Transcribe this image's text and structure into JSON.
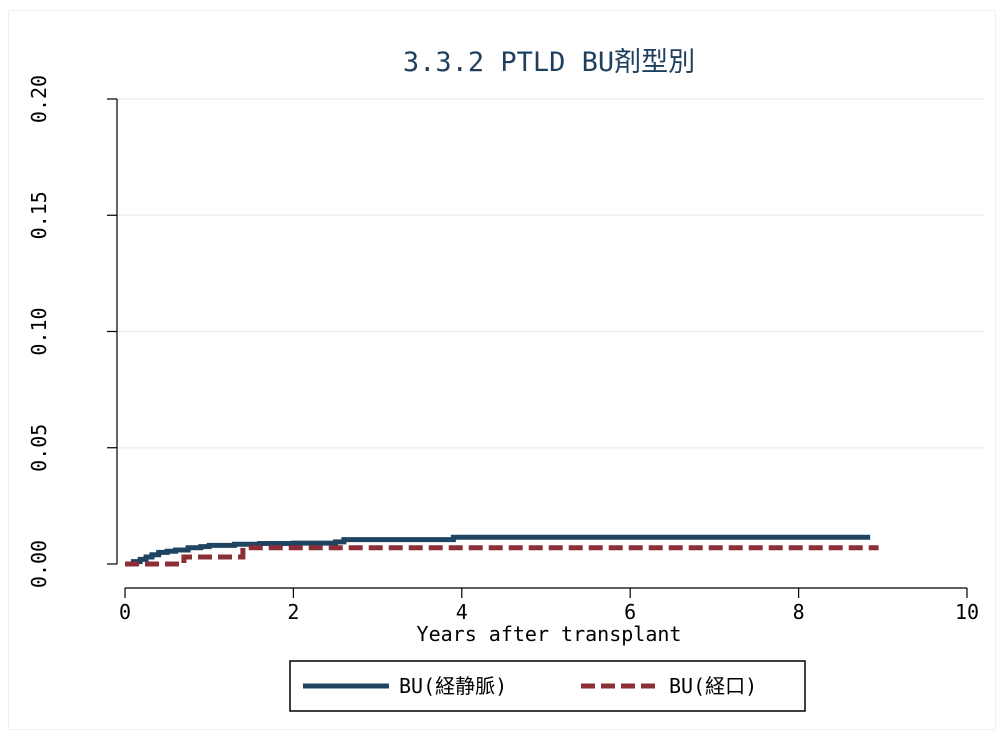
{
  "chart_data": {
    "type": "line",
    "title": "3.3.2 PTLD BU剤型別",
    "xlabel": "Years after transplant",
    "ylabel": "",
    "xlim": [
      0,
      10
    ],
    "ylim": [
      0,
      0.2
    ],
    "x_ticks": [
      "0",
      "2",
      "4",
      "6",
      "8",
      "10"
    ],
    "y_ticks": [
      "0.00",
      "0.05",
      "0.10",
      "0.15",
      "0.20"
    ],
    "grid": true,
    "legend_position": "bottom",
    "series": [
      {
        "name": "BU(経静脈)",
        "color": "#1e4462",
        "style": "solid",
        "x": [
          0,
          0.1,
          0.18,
          0.25,
          0.32,
          0.4,
          0.5,
          0.6,
          0.75,
          0.9,
          1.0,
          1.3,
          1.6,
          2.0,
          2.5,
          2.6,
          3.9,
          8.85
        ],
        "y": [
          0,
          0.001,
          0.002,
          0.003,
          0.004,
          0.005,
          0.0055,
          0.006,
          0.007,
          0.0075,
          0.008,
          0.0085,
          0.0088,
          0.009,
          0.0095,
          0.0105,
          0.0115,
          0.0115
        ]
      },
      {
        "name": "BU(経口)",
        "color": "#8b2e36",
        "style": "dashed",
        "x": [
          0,
          0.65,
          0.7,
          1.4,
          8.95
        ],
        "y": [
          0,
          0,
          0.003,
          0.007,
          0.007
        ]
      }
    ]
  }
}
